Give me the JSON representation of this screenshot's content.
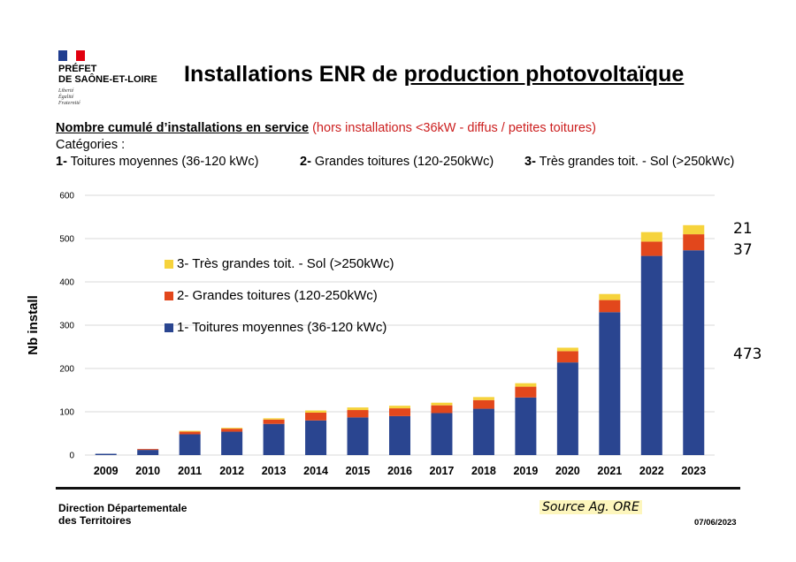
{
  "header": {
    "org_line1": "PRÉFET",
    "org_line2": "DE SAÔNE-ET-LOIRE",
    "motto": [
      "Liberté",
      "Égalité",
      "Fraternité"
    ],
    "title_part1": "Installations ENR de ",
    "title_part2": "production photovoltaïque"
  },
  "subtitle": {
    "lead": "Nombre cumulé d’installations en service",
    "note": " (hors installations <36kW - diffus / petites toitures)"
  },
  "categories_block": {
    "title": "Catégories :",
    "items": [
      {
        "num": "1-",
        "label": " Toitures moyennes (36-120 kWc)"
      },
      {
        "num": "2-",
        "label": " Grandes toitures (120-250kWc)"
      },
      {
        "num": "3-",
        "label": " Très grandes toit. - Sol (>250kWc)"
      }
    ]
  },
  "chart_data": {
    "type": "bar",
    "stacked": true,
    "ylabel": "Nb install",
    "ylim": [
      0,
      600
    ],
    "yticks": [
      0,
      100,
      200,
      300,
      400,
      500,
      600
    ],
    "grid": true,
    "legend_position": "upper-left-inside",
    "categories": [
      "2009",
      "2010",
      "2011",
      "2012",
      "2013",
      "2014",
      "2015",
      "2016",
      "2017",
      "2018",
      "2019",
      "2020",
      "2021",
      "2022",
      "2023"
    ],
    "series": [
      {
        "name": "1- Toitures moyennes (36-120 kWc)",
        "color": "#2a4590",
        "values": [
          3,
          12,
          48,
          54,
          72,
          80,
          87,
          90,
          97,
          107,
          133,
          214,
          330,
          460,
          473
        ]
      },
      {
        "name": "2- Grandes toitures (120-250kWc)",
        "color": "#e2471c",
        "values": [
          0,
          2,
          6,
          7,
          10,
          18,
          17,
          18,
          18,
          20,
          25,
          26,
          28,
          33,
          37
        ]
      },
      {
        "name": "3- Très grandes toit. - Sol (>250kWc)",
        "color": "#f6d33c",
        "values": [
          0,
          0,
          2,
          2,
          3,
          5,
          6,
          6,
          6,
          7,
          8,
          8,
          14,
          22,
          21
        ]
      }
    ],
    "annotations": [
      "21",
      "37",
      "473"
    ]
  },
  "footer": {
    "org_line1": "Direction Départementale",
    "org_line2": "des Territoires",
    "source": "Source Ag. ORE",
    "date": "07/06/2023"
  }
}
